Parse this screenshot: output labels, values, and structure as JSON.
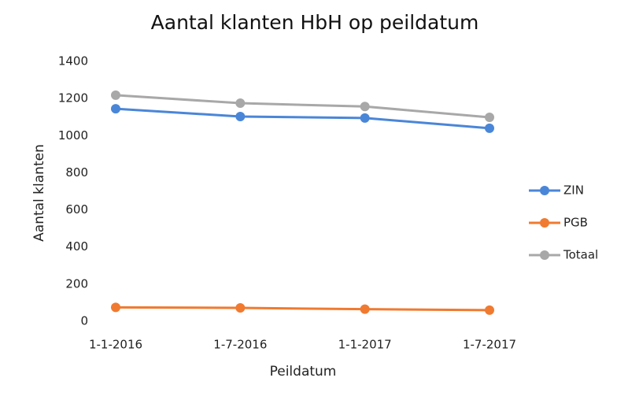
{
  "chart_data": {
    "type": "line",
    "title": "Aantal klanten HbH op peildatum",
    "x_label": "Peildatum",
    "y_label": "Aantal klanten",
    "categories": [
      "1-1-2016",
      "1-7-2016",
      "1-1-2017",
      "1-7-2017"
    ],
    "series": [
      {
        "name": "ZIN",
        "color": "#4a86d8",
        "values": [
          1145,
          1103,
          1095,
          1040
        ]
      },
      {
        "name": "PGB",
        "color": "#f07a30",
        "values": [
          75,
          72,
          65,
          60
        ]
      },
      {
        "name": "Totaal",
        "color": "#a8a8a8",
        "values": [
          1218,
          1175,
          1157,
          1099
        ]
      }
    ],
    "ylim": [
      0,
      1400
    ],
    "yticks": [
      0,
      200,
      400,
      600,
      800,
      1000,
      1200,
      1400
    ],
    "grid": false,
    "legend": "right"
  }
}
